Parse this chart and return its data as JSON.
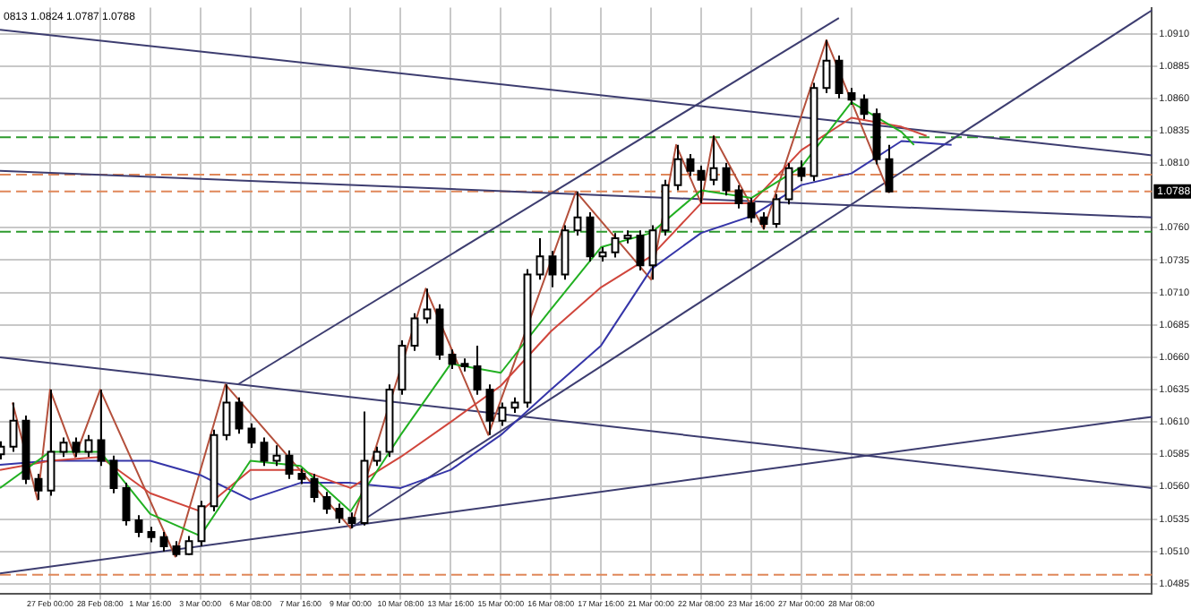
{
  "chart_data": {
    "type": "candlestick",
    "colors": [
      "#ffffff",
      "#ffffff",
      "#000000",
      "#000000",
      "#ffffff",
      "#ffffff",
      "#000000",
      "#ffffff",
      "#000000",
      "#000000",
      "#000000",
      "#000000",
      "#000000",
      "#000000",
      "#000000",
      "#ffffff",
      "#ffffff",
      "#ffffff",
      "#ffffff",
      "#000000",
      "#000000",
      "#000000",
      "#ffffff",
      "#000000",
      "#000000",
      "#000000",
      "#000000",
      "#000000",
      "#000000",
      "#ffffff",
      "#ffffff",
      "#ffffff",
      "#ffffff",
      "#ffffff",
      "#ffffff",
      "#000000",
      "#000000",
      "#000000",
      "#000000",
      "#000000",
      "#ffffff",
      "#ffffff",
      "#ffffff",
      "#ffffff",
      "#000000",
      "#ffffff",
      "#ffffff",
      "#000000",
      "#ffffff",
      "#ffffff",
      "#ffffff",
      "#000000",
      "#ffffff",
      "#ffffff",
      "#ffffff",
      "#000000",
      "#000000",
      "#ffffff",
      "#000000",
      "#000000",
      "#000000",
      "#000000",
      "#ffffff",
      "#ffffff",
      "#000000",
      "#ffffff",
      "#ffffff",
      "#000000",
      "#000000",
      "#000000",
      "#000000",
      "#000000",
      null,
      null,
      null,
      null,
      null,
      null,
      null,
      null,
      null,
      null,
      null,
      null,
      null,
      null,
      null,
      null,
      null,
      null,
      null,
      null,
      null
    ],
    "annotations": [
      "0813 1.0824 1.0787 1.0788"
    ],
    "categories": [
      null,
      null,
      null,
      null,
      "27 Feb 00:00",
      null,
      null,
      null,
      "28 Feb 08:00",
      null,
      null,
      null,
      "1 Mar 16:00",
      null,
      null,
      null,
      "3 Mar 00:00",
      null,
      null,
      null,
      "6 Mar 08:00",
      null,
      null,
      null,
      "7 Mar 16:00",
      null,
      null,
      null,
      "9 Mar 00:00",
      null,
      null,
      null,
      "10 Mar 08:00",
      null,
      null,
      null,
      "13 Mar 16:00",
      null,
      null,
      null,
      "15 Mar 00:00",
      null,
      null,
      null,
      "16 Mar 08:00",
      null,
      null,
      null,
      "17 Mar 16:00",
      null,
      null,
      null,
      "21 Mar 00:00",
      null,
      null,
      null,
      "22 Mar 08:00",
      null,
      null,
      null,
      "23 Mar 16:00",
      null,
      null,
      null,
      "27 Mar 00:00",
      null,
      null,
      null,
      "28 Mar 08:00",
      null,
      null,
      null,
      null,
      null,
      null,
      null,
      null,
      null,
      null,
      null,
      null,
      null,
      null,
      null,
      null,
      null,
      null,
      null,
      null,
      null,
      null,
      null,
      null
    ],
    "ohlc": [
      [
        1.0585,
        1.0595,
        1.0581,
        1.0591
      ],
      [
        1.0591,
        1.0625,
        1.0587,
        1.0611
      ],
      [
        1.0611,
        1.0615,
        1.0562,
        1.0566
      ],
      [
        1.0566,
        1.057,
        1.055,
        1.0557
      ],
      [
        1.0557,
        1.0635,
        1.0553,
        1.0587
      ],
      [
        1.0587,
        1.0598,
        1.0583,
        1.0594
      ],
      [
        1.0594,
        1.0598,
        1.0583,
        1.0587
      ],
      [
        1.0587,
        1.06,
        1.0583,
        1.0596
      ],
      [
        1.0596,
        1.0635,
        1.0576,
        1.058
      ],
      [
        1.058,
        1.0584,
        1.0555,
        1.0559
      ],
      [
        1.0559,
        1.0563,
        1.053,
        1.0534
      ],
      [
        1.0534,
        1.0538,
        1.0521,
        1.0525
      ],
      [
        1.0525,
        1.0529,
        1.0517,
        1.0521
      ],
      [
        1.0521,
        1.0525,
        1.051,
        1.0514
      ],
      [
        1.0514,
        1.0518,
        1.0506,
        1.0508
      ],
      [
        1.0508,
        1.0522,
        1.0507,
        1.0518
      ],
      [
        1.0518,
        1.0549,
        1.0514,
        1.0545
      ],
      [
        1.0545,
        1.0604,
        1.0541,
        1.06
      ],
      [
        1.06,
        1.0639,
        1.0596,
        1.0625
      ],
      [
        1.0625,
        1.0629,
        1.0601,
        1.0605
      ],
      [
        1.0605,
        1.0609,
        1.059,
        1.0594
      ],
      [
        1.0594,
        1.0598,
        1.0576,
        1.058
      ],
      [
        1.058,
        1.0592,
        1.0576,
        1.0584
      ],
      [
        1.0584,
        1.0588,
        1.0566,
        1.057
      ],
      [
        1.057,
        1.0574,
        1.0562,
        1.0566
      ],
      [
        1.0566,
        1.057,
        1.0548,
        1.0552
      ],
      [
        1.0552,
        1.0556,
        1.0539,
        1.0543
      ],
      [
        1.0543,
        1.0547,
        1.0532,
        1.0536
      ],
      [
        1.0536,
        1.054,
        1.0528,
        1.0532
      ],
      [
        1.0532,
        1.0618,
        1.053,
        1.058
      ],
      [
        1.058,
        1.0591,
        1.0576,
        1.0587
      ],
      [
        1.0587,
        1.0639,
        1.0583,
        1.0635
      ],
      [
        1.0635,
        1.0673,
        1.0631,
        1.0669
      ],
      [
        1.0669,
        1.0694,
        1.0665,
        1.069
      ],
      [
        1.069,
        1.0713,
        1.0686,
        1.0697
      ],
      [
        1.0697,
        1.0701,
        1.0658,
        1.0662
      ],
      [
        1.0662,
        1.0666,
        1.0651,
        1.0655
      ],
      [
        1.0655,
        1.0659,
        1.0649,
        1.0653
      ],
      [
        1.0653,
        1.0669,
        1.0631,
        1.0635
      ],
      [
        1.0635,
        1.0639,
        1.06,
        1.0611
      ],
      [
        1.0611,
        1.0625,
        1.0607,
        1.0621
      ],
      [
        1.0621,
        1.0629,
        1.0617,
        1.0625
      ],
      [
        1.0625,
        1.0728,
        1.0621,
        1.0724
      ],
      [
        1.0724,
        1.0752,
        1.072,
        1.0738
      ],
      [
        1.0738,
        1.0742,
        1.0714,
        1.0724
      ],
      [
        1.0724,
        1.0762,
        1.072,
        1.0758
      ],
      [
        1.0758,
        1.0788,
        1.0754,
        1.0768
      ],
      [
        1.0768,
        1.0772,
        1.0734,
        1.0738
      ],
      [
        1.0738,
        1.0745,
        1.0734,
        1.0741
      ],
      [
        1.0741,
        1.0756,
        1.0737,
        1.0752
      ],
      [
        1.0752,
        1.0758,
        1.0748,
        1.0754
      ],
      [
        1.0754,
        1.0758,
        1.0727,
        1.0731
      ],
      [
        1.0731,
        1.0762,
        1.072,
        1.0758
      ],
      [
        1.0758,
        1.0797,
        1.0754,
        1.0793
      ],
      [
        1.0793,
        1.0824,
        1.0789,
        1.0813
      ],
      [
        1.0813,
        1.0817,
        1.08,
        1.0804
      ],
      [
        1.0804,
        1.0808,
        1.0779,
        1.0797
      ],
      [
        1.0797,
        1.0831,
        1.0793,
        1.0806
      ],
      [
        1.0806,
        1.081,
        1.0785,
        1.0789
      ],
      [
        1.0789,
        1.0793,
        1.0775,
        1.0779
      ],
      [
        1.0779,
        1.0783,
        1.0764,
        1.0768
      ],
      [
        1.0768,
        1.0772,
        1.0759,
        1.0763
      ],
      [
        1.0763,
        1.0786,
        1.076,
        1.0782
      ],
      [
        1.0782,
        1.081,
        1.0778,
        1.0806
      ],
      [
        1.0806,
        1.0812,
        1.0796,
        1.08
      ],
      [
        1.08,
        1.0872,
        1.0796,
        1.0868
      ],
      [
        1.0868,
        1.0905,
        1.0864,
        1.0889
      ],
      [
        1.0889,
        1.0893,
        1.086,
        1.0864
      ],
      [
        1.0864,
        1.0868,
        1.0855,
        1.0859
      ],
      [
        1.0859,
        1.0863,
        1.0844,
        1.0848
      ],
      [
        1.0848,
        1.0852,
        1.0809,
        1.0813
      ],
      [
        1.0813,
        1.0824,
        1.0787,
        1.0788
      ],
      null,
      null,
      null,
      null,
      null,
      null,
      null,
      null,
      null,
      null,
      null,
      null,
      null,
      null,
      null,
      null,
      null,
      null,
      null,
      null,
      null
    ],
    "series": [
      {
        "type": "line",
        "color": "#22b022",
        "values": [
          1.0559,
          null,
          null,
          null,
          1.0587,
          null,
          null,
          null,
          1.0587,
          null,
          null,
          null,
          1.0539,
          null,
          null,
          null,
          1.0522,
          null,
          null,
          null,
          1.058,
          null,
          null,
          null,
          1.0576,
          null,
          null,
          null,
          1.0541,
          null,
          null,
          null,
          1.06,
          null,
          null,
          null,
          1.0655,
          null,
          null,
          null,
          1.0648,
          null,
          null,
          null,
          1.0697,
          null,
          null,
          null,
          1.0745,
          null,
          null,
          null,
          1.0756,
          null,
          null,
          null,
          1.0789,
          null,
          null,
          null,
          1.0783,
          null,
          null,
          null,
          1.0807,
          null,
          null,
          null,
          1.0857,
          null,
          null,
          null,
          1.0834,
          1.0824,
          null,
          null,
          null,
          null,
          null,
          null,
          null,
          null,
          null,
          null,
          null,
          null,
          null,
          null,
          null,
          null,
          null,
          null,
          null
        ]
      },
      {
        "type": "line",
        "color": "#d0463c",
        "values": [
          1.0573,
          null,
          null,
          null,
          1.058,
          null,
          null,
          null,
          1.0583,
          null,
          null,
          null,
          1.0555,
          null,
          null,
          null,
          1.0541,
          null,
          null,
          null,
          1.0573,
          null,
          null,
          null,
          1.0573,
          null,
          null,
          null,
          1.0559,
          null,
          null,
          null,
          1.0583,
          null,
          null,
          null,
          1.061,
          null,
          null,
          null,
          1.0638,
          null,
          null,
          null,
          1.068,
          null,
          null,
          null,
          1.0714,
          null,
          null,
          null,
          1.0738,
          null,
          null,
          null,
          1.0779,
          null,
          null,
          null,
          1.0779,
          null,
          null,
          null,
          1.082,
          null,
          null,
          null,
          1.0845,
          null,
          null,
          null,
          1.0838,
          null,
          1.0831,
          null,
          null,
          null,
          null,
          null,
          null,
          null,
          null,
          null,
          null,
          null,
          null,
          null,
          null,
          null,
          null,
          null,
          null
        ]
      },
      {
        "type": "line",
        "color": "#3535a8",
        "values": [
          1.0577,
          null,
          null,
          null,
          1.058,
          null,
          null,
          null,
          1.058,
          null,
          null,
          null,
          1.058,
          null,
          null,
          null,
          1.0569,
          null,
          null,
          null,
          1.055,
          null,
          null,
          null,
          1.0563,
          null,
          null,
          null,
          1.0563,
          null,
          null,
          null,
          1.0559,
          null,
          null,
          null,
          1.0573,
          null,
          null,
          null,
          1.06,
          null,
          null,
          null,
          1.0635,
          null,
          null,
          null,
          1.0669,
          null,
          null,
          null,
          1.0728,
          null,
          null,
          null,
          1.0756,
          null,
          null,
          null,
          1.0769,
          null,
          null,
          null,
          1.0793,
          null,
          null,
          null,
          1.0802,
          null,
          null,
          null,
          1.0827,
          null,
          null,
          null,
          1.0824,
          null,
          null,
          null,
          null,
          null,
          null,
          null,
          null,
          null,
          null,
          null,
          null,
          null,
          null,
          null,
          null
        ]
      },
      {
        "type": "line",
        "color": "#b4503c",
        "values": [
          null,
          1.0625,
          null,
          1.055,
          1.0635,
          null,
          1.0583,
          null,
          1.0635,
          null,
          null,
          null,
          null,
          null,
          1.0506,
          null,
          null,
          null,
          1.0639,
          null,
          null,
          null,
          null,
          null,
          null,
          null,
          null,
          null,
          1.0528,
          null,
          null,
          null,
          null,
          null,
          1.0713,
          null,
          null,
          null,
          null,
          1.06,
          null,
          null,
          null,
          null,
          null,
          null,
          1.0788,
          null,
          null,
          null,
          null,
          null,
          1.072,
          null,
          1.0824,
          null,
          1.0779,
          1.0831,
          null,
          null,
          null,
          1.0759,
          null,
          null,
          null,
          null,
          1.0905,
          null,
          null,
          null,
          null,
          1.0787,
          null,
          null,
          null,
          null,
          null,
          null,
          null,
          null,
          null,
          null,
          null,
          null,
          null,
          null,
          null,
          null,
          null,
          null,
          null,
          null,
          null
        ]
      },
      {
        "type": "line",
        "color": "#3d3d70",
        "values": [
          1.0913,
          null,
          null,
          null,
          null,
          null,
          null,
          null,
          null,
          null,
          null,
          null,
          null,
          null,
          null,
          null,
          null,
          null,
          null,
          null,
          null,
          null,
          null,
          null,
          null,
          null,
          null,
          null,
          null,
          null,
          null,
          null,
          null,
          null,
          null,
          null,
          null,
          null,
          null,
          null,
          null,
          null,
          null,
          null,
          null,
          null,
          null,
          null,
          null,
          null,
          null,
          null,
          null,
          null,
          null,
          null,
          null,
          null,
          null,
          null,
          null,
          null,
          null,
          null,
          null,
          null,
          null,
          null,
          null,
          null,
          null,
          null,
          null,
          null,
          null,
          null,
          null,
          null,
          null,
          null,
          null,
          null,
          null,
          null,
          null,
          null,
          null,
          null,
          null,
          null,
          null,
          null,
          1.0816
        ]
      },
      {
        "type": "line",
        "color": "#3d3d70",
        "values": [
          1.0804,
          null,
          null,
          null,
          null,
          null,
          null,
          null,
          null,
          null,
          null,
          null,
          null,
          null,
          null,
          null,
          null,
          null,
          null,
          null,
          null,
          null,
          null,
          null,
          null,
          null,
          null,
          null,
          null,
          null,
          null,
          null,
          null,
          null,
          null,
          null,
          null,
          null,
          null,
          null,
          null,
          null,
          null,
          null,
          null,
          null,
          null,
          null,
          null,
          null,
          null,
          null,
          null,
          null,
          null,
          null,
          null,
          null,
          null,
          null,
          null,
          null,
          null,
          null,
          null,
          null,
          null,
          null,
          null,
          null,
          null,
          null,
          null,
          null,
          null,
          null,
          null,
          null,
          null,
          null,
          null,
          null,
          null,
          null,
          null,
          null,
          null,
          null,
          null,
          null,
          null,
          null,
          1.0768
        ]
      },
      {
        "type": "line",
        "color": "#3d3d70",
        "values": [
          1.066,
          null,
          null,
          null,
          null,
          null,
          null,
          null,
          null,
          null,
          null,
          null,
          null,
          null,
          null,
          null,
          null,
          null,
          null,
          null,
          null,
          null,
          null,
          null,
          null,
          null,
          null,
          null,
          null,
          null,
          null,
          null,
          null,
          null,
          null,
          null,
          null,
          null,
          null,
          null,
          null,
          null,
          null,
          null,
          null,
          null,
          null,
          null,
          null,
          null,
          null,
          null,
          null,
          null,
          null,
          null,
          null,
          null,
          null,
          null,
          null,
          null,
          null,
          null,
          null,
          null,
          null,
          null,
          null,
          null,
          null,
          null,
          null,
          null,
          null,
          null,
          null,
          null,
          null,
          null,
          null,
          null,
          null,
          null,
          null,
          null,
          null,
          null,
          null,
          null,
          null,
          null,
          1.0559
        ]
      },
      {
        "type": "line",
        "color": "#3d3d70",
        "values": [
          1.0493,
          null,
          null,
          null,
          null,
          null,
          null,
          null,
          null,
          null,
          null,
          null,
          null,
          null,
          null,
          null,
          null,
          null,
          null,
          null,
          null,
          null,
          null,
          null,
          null,
          null,
          null,
          null,
          null,
          null,
          null,
          null,
          null,
          null,
          null,
          null,
          null,
          null,
          null,
          null,
          null,
          null,
          null,
          null,
          null,
          null,
          null,
          null,
          null,
          null,
          null,
          null,
          null,
          null,
          null,
          null,
          null,
          null,
          null,
          null,
          null,
          null,
          null,
          null,
          null,
          null,
          null,
          null,
          null,
          null,
          null,
          null,
          null,
          null,
          null,
          null,
          null,
          null,
          null,
          null,
          null,
          null,
          null,
          null,
          null,
          null,
          null,
          null,
          null,
          null,
          null,
          null,
          1.0614
        ]
      },
      {
        "type": "line",
        "color": "#3d3d70",
        "values": [
          null,
          null,
          null,
          null,
          null,
          null,
          null,
          null,
          null,
          null,
          null,
          null,
          null,
          null,
          null,
          null,
          null,
          null,
          null,
          1.0639,
          null,
          null,
          null,
          null,
          null,
          null,
          null,
          null,
          null,
          null,
          null,
          null,
          null,
          null,
          null,
          null,
          null,
          null,
          null,
          null,
          null,
          null,
          null,
          null,
          null,
          null,
          null,
          null,
          null,
          null,
          null,
          null,
          null,
          null,
          null,
          null,
          null,
          null,
          null,
          null,
          null,
          null,
          null,
          null,
          null,
          null,
          null,
          1.0922,
          null,
          null,
          null,
          null,
          null,
          null,
          null,
          null,
          null,
          null,
          null,
          null,
          null,
          null,
          null,
          null,
          null,
          null,
          null,
          null,
          null,
          null,
          null,
          null,
          null
        ]
      },
      {
        "type": "line",
        "color": "#3d3d70",
        "values": [
          null,
          null,
          null,
          null,
          null,
          null,
          null,
          null,
          null,
          null,
          null,
          null,
          null,
          null,
          null,
          null,
          null,
          null,
          null,
          null,
          null,
          null,
          null,
          null,
          null,
          null,
          null,
          null,
          1.0528,
          null,
          null,
          null,
          null,
          null,
          null,
          null,
          null,
          null,
          null,
          null,
          null,
          null,
          null,
          null,
          null,
          null,
          null,
          null,
          null,
          null,
          null,
          null,
          null,
          null,
          null,
          null,
          null,
          null,
          null,
          null,
          null,
          null,
          null,
          null,
          null,
          null,
          null,
          null,
          null,
          null,
          null,
          null,
          null,
          null,
          null,
          null,
          null,
          null,
          null,
          null,
          null,
          null,
          null,
          null,
          null,
          null,
          null,
          null,
          null,
          null,
          null,
          null,
          1.0928
        ]
      }
    ],
    "ref_lines": [
      {
        "axis": "y",
        "value": 1.083,
        "color": "#2e9a2e",
        "line_style": "dashed"
      },
      {
        "axis": "y",
        "value": 1.0757,
        "color": "#2e9a2e",
        "line_style": "dashed"
      },
      {
        "axis": "y",
        "value": 1.0801,
        "color": "#e0885a",
        "line_style": "dashed"
      },
      {
        "axis": "y",
        "value": 1.0788,
        "color": "#e0885a",
        "line_style": "dashed",
        "label": "1.0788"
      },
      {
        "axis": "y",
        "value": 1.0492,
        "color": "#e0885a",
        "line_style": "dashed"
      }
    ],
    "ylim": [
      1.0477,
      1.093
    ],
    "yticks": [
      1.0485,
      {
        "value": 1.051,
        "label": "1.0510"
      },
      1.0535,
      {
        "value": 1.056,
        "label": "1.0560"
      },
      1.0585,
      {
        "value": 1.061,
        "label": "1.0610"
      },
      1.0635,
      {
        "value": 1.066,
        "label": "1.0660"
      },
      1.0685,
      {
        "value": 1.071,
        "label": "1.0710"
      },
      1.0735,
      {
        "value": 1.076,
        "label": "1.0760"
      },
      {
        "value": 1.081,
        "label": "1.0810"
      },
      1.0835,
      {
        "value": 1.086,
        "label": "1.0860"
      },
      1.0885,
      {
        "value": 1.091,
        "label": "1.0910"
      }
    ],
    "grid": true,
    "legend": false,
    "marker": "none",
    "line_style": "solid"
  }
}
